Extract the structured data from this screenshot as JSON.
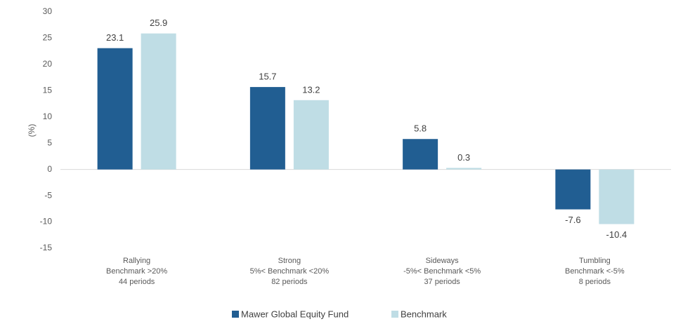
{
  "chart_data": {
    "type": "bar",
    "y_label": "(%)",
    "categories": [
      [
        "Rallying",
        "Benchmark >20%",
        "44 periods"
      ],
      [
        "Strong",
        "5%< Benchmark <20%",
        "82 periods"
      ],
      [
        "Sideways",
        "-5%< Benchmark <5%",
        "37 periods"
      ],
      [
        "Tumbling",
        "Benchmark <-5%",
        "8 periods"
      ]
    ],
    "series": [
      {
        "name": "Mawer Global Equity Fund",
        "color": "#215e92",
        "values": [
          23.1,
          15.7,
          5.8,
          -7.6
        ]
      },
      {
        "name": "Benchmark",
        "color": "#bfdde5",
        "values": [
          25.9,
          13.2,
          0.3,
          -10.4
        ]
      }
    ],
    "ylim": [
      -15,
      30
    ],
    "yticks": [
      -15,
      -10,
      -5,
      0,
      5,
      10,
      15,
      20,
      25,
      30
    ],
    "grid": false,
    "legend": "bottom"
  }
}
